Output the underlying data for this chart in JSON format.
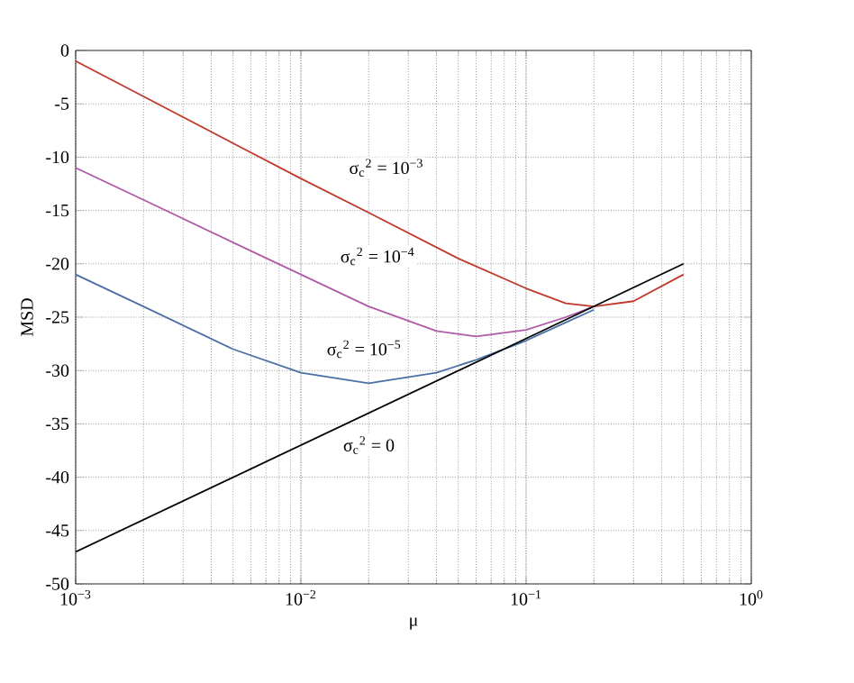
{
  "chart_data": {
    "type": "line",
    "xlabel": "μ",
    "ylabel": "MSD",
    "log": "x",
    "grid": true,
    "line_style": "solid",
    "xlim": [
      0.001,
      1
    ],
    "ylim": [
      -50,
      0
    ],
    "xticks": [
      {
        "value": 0.001,
        "label": "10$^{−3}$"
      },
      {
        "value": 0.01,
        "label": "10$^{−2}$"
      },
      {
        "value": 0.1,
        "label": "10$^{−1}$"
      },
      {
        "value": 1,
        "label": "10$^{0}$"
      }
    ],
    "yticks": [
      -50,
      -45,
      -40,
      -35,
      -30,
      -25,
      -20,
      -15,
      -10,
      -5,
      0
    ],
    "series": [
      {
        "color": "#c0392b",
        "x": [
          0.001,
          0.002,
          0.005,
          0.01,
          0.02,
          0.05,
          0.1,
          0.15,
          0.2,
          0.3,
          0.5
        ],
        "values": [
          -1,
          -4.3,
          -8.7,
          -12,
          -15.2,
          -19.5,
          -22.3,
          -23.7,
          -24,
          -23.5,
          -21
        ]
      },
      {
        "color": "#b05aa8",
        "x": [
          0.001,
          0.002,
          0.005,
          0.01,
          0.02,
          0.04,
          0.06,
          0.1,
          0.15,
          0.2
        ],
        "values": [
          -11,
          -14,
          -18,
          -21,
          -24,
          -26.3,
          -26.8,
          -26.2,
          -25,
          -24
        ]
      },
      {
        "color": "#4a6fa5",
        "x": [
          0.001,
          0.002,
          0.005,
          0.01,
          0.02,
          0.04,
          0.06,
          0.1,
          0.15,
          0.2
        ],
        "values": [
          -21,
          -24,
          -28,
          -30.2,
          -31.2,
          -30.2,
          -29,
          -27.2,
          -25.5,
          -24.3
        ]
      },
      {
        "color": "#000000",
        "x": [
          0.001,
          0.01,
          0.1,
          0.5
        ],
        "values": [
          -47,
          -37,
          -27,
          -20
        ]
      }
    ],
    "annotations": [
      "σ$_{c}$$^{2}$ = 10$^{−3}$",
      "σ$_{c}$$^{2}$ = 10$^{−4}$",
      "σ$_{c}$$^{2}$ = 10$^{−5}$",
      "σ$_{c}$$^{2}$ = 0"
    ]
  }
}
